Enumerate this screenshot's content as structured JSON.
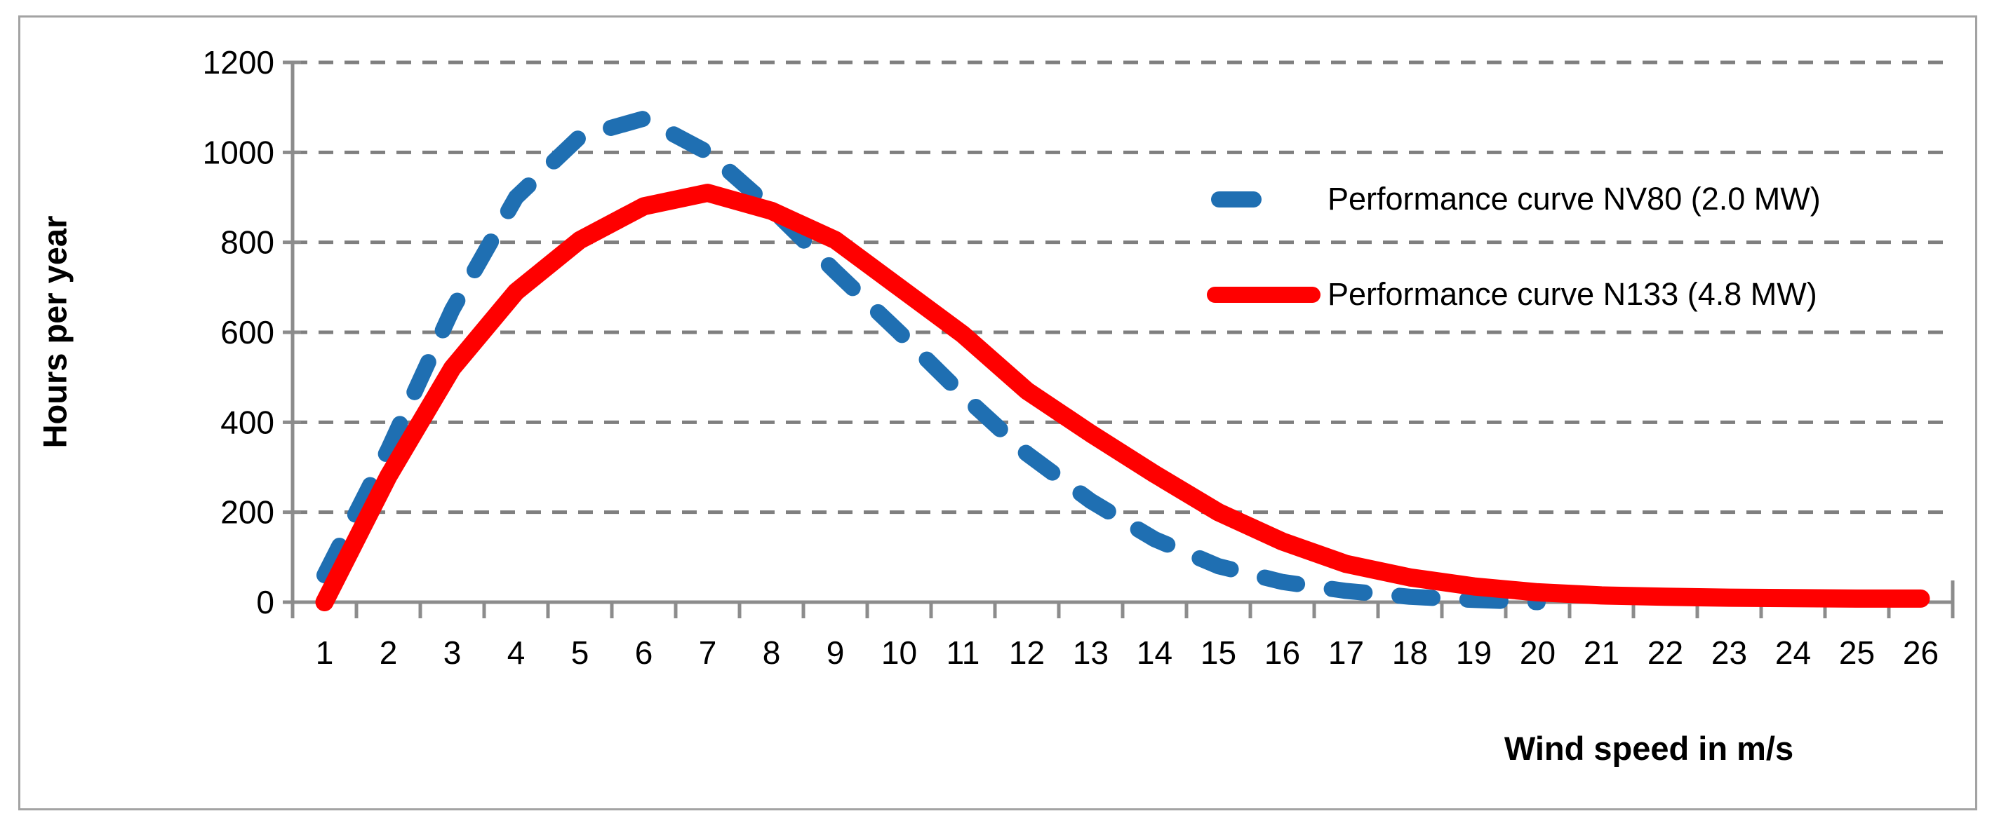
{
  "figure": {
    "y_axis_title": "Hours per year",
    "x_axis_title": "Wind speed in m/s"
  },
  "chart_data": {
    "type": "line",
    "title": "",
    "xlabel": "Wind speed in m/s",
    "ylabel": "Hours per year",
    "categories": [
      1,
      2,
      3,
      4,
      5,
      6,
      7,
      8,
      9,
      10,
      11,
      12,
      13,
      14,
      15,
      16,
      17,
      18,
      19,
      20,
      21,
      22,
      23,
      24,
      25,
      26
    ],
    "yticks": [
      0,
      200,
      400,
      600,
      800,
      1000,
      1200
    ],
    "ylim": [
      0,
      1200
    ],
    "grid": "horizontal-dashed",
    "legend_position": "upper-right-inside",
    "series": [
      {
        "name": "Performance curve NV80 (2.0 MW)",
        "color": "#1f6fb2",
        "style": "dashed",
        "x": [
          1,
          2,
          3,
          4,
          5,
          6,
          7,
          8,
          9,
          10,
          11,
          12,
          13,
          14,
          15,
          16,
          17,
          18,
          19,
          20
        ],
        "values": [
          60,
          340,
          650,
          900,
          1035,
          1075,
          1000,
          875,
          735,
          600,
          460,
          330,
          225,
          140,
          80,
          45,
          25,
          12,
          5,
          0
        ]
      },
      {
        "name": "Performance curve N133 (4.8 MW)",
        "color": "#ff0000",
        "style": "solid",
        "x": [
          1,
          2,
          3,
          4,
          5,
          6,
          7,
          8,
          9,
          10,
          11,
          12,
          13,
          14,
          15,
          16,
          17,
          18,
          19,
          20,
          21,
          22,
          23,
          24,
          25,
          26
        ],
        "values": [
          0,
          280,
          520,
          690,
          805,
          880,
          910,
          870,
          805,
          700,
          595,
          470,
          375,
          285,
          200,
          135,
          85,
          55,
          35,
          22,
          15,
          12,
          10,
          9,
          8,
          8
        ]
      }
    ]
  },
  "colors": {
    "nv80_blue": "#1f6fb2",
    "n133_red": "#ff0000",
    "gridline_gray": "#7f7f7f",
    "axis_gray": "#8c8c8c",
    "border_gray": "#a3a3a3"
  }
}
